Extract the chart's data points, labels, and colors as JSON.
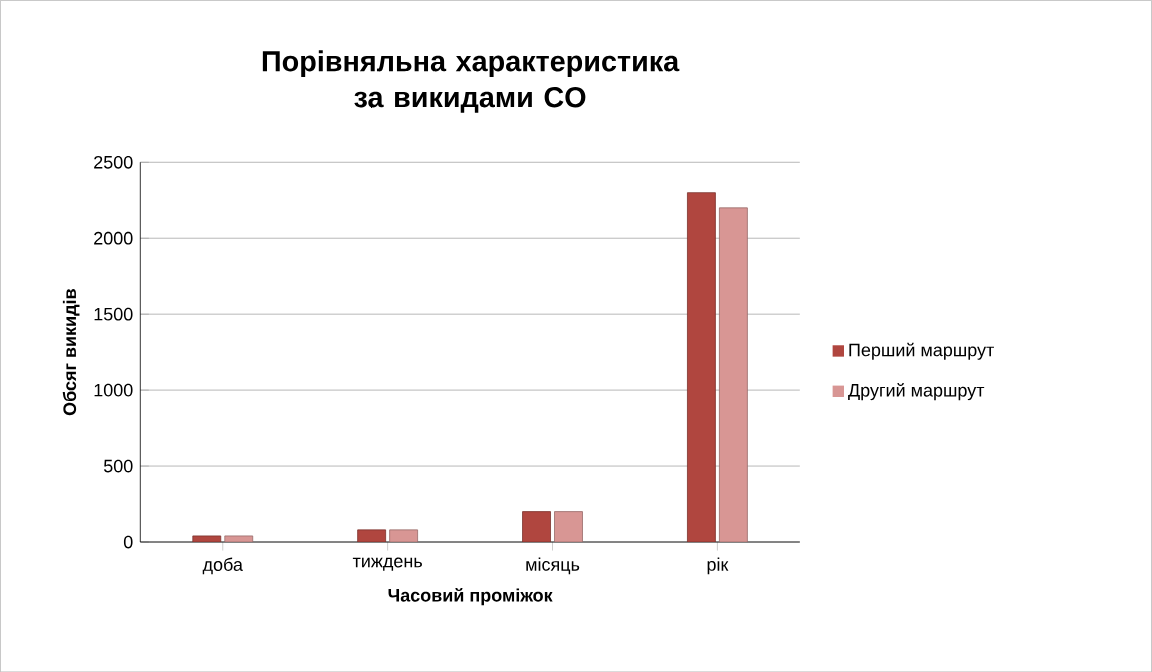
{
  "chart_data": {
    "type": "bar",
    "title": "Порівняльна характеристика за викидами CO",
    "xlabel": "Часовий проміжок",
    "ylabel": "Обсяг викидів",
    "categories": [
      "доба",
      "тиждень",
      "місяць",
      "рік"
    ],
    "series": [
      {
        "name": "Перший маршрут",
        "color": "#b0463f",
        "values": [
          40,
          80,
          200,
          2300
        ]
      },
      {
        "name": "Другий маршрут",
        "color": "#d89694",
        "values": [
          40,
          80,
          200,
          2200
        ]
      }
    ],
    "ylim": [
      0,
      2500
    ],
    "yticks": [
      0,
      500,
      1000,
      1500,
      2000,
      2500
    ],
    "grid": "y",
    "legend": "right"
  }
}
